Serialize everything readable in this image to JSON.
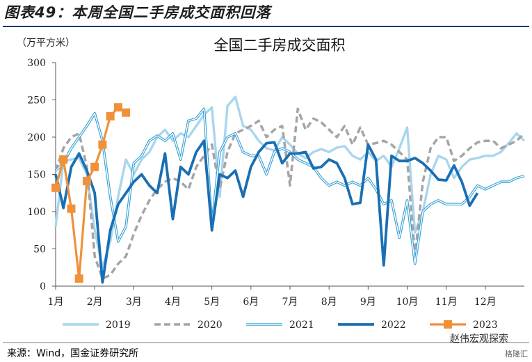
{
  "header": {
    "figure_title": "图表49：本周全国二手房成交面积回落"
  },
  "footer": {
    "source": "来源：Wind，国金证券研究所",
    "watermark": "赵伟宏观探索",
    "watermark2": "格隆汇"
  },
  "chart_data": {
    "type": "line",
    "title": "全国二手房成交面积",
    "unit_label": "（万平方米）",
    "ylim": [
      0,
      300
    ],
    "yticks": [
      0,
      50,
      100,
      150,
      200,
      250,
      300
    ],
    "xlim": [
      1,
      13
    ],
    "xticks": [
      {
        "pos": 1,
        "label": "1月"
      },
      {
        "pos": 2,
        "label": "2月"
      },
      {
        "pos": 3,
        "label": "3月"
      },
      {
        "pos": 4,
        "label": "4月"
      },
      {
        "pos": 5,
        "label": "5月"
      },
      {
        "pos": 6,
        "label": "6月"
      },
      {
        "pos": 7,
        "label": "7月"
      },
      {
        "pos": 8,
        "label": "8月"
      },
      {
        "pos": 9,
        "label": "9月"
      },
      {
        "pos": 10,
        "label": "10月"
      },
      {
        "pos": 11,
        "label": "11月"
      },
      {
        "pos": 12,
        "label": "12月"
      }
    ],
    "legend_position": "bottom",
    "series": [
      {
        "name": "2019",
        "color": "#a9d6ee",
        "style": "solid-light",
        "points": [
          [
            1.0,
            80
          ],
          [
            1.2,
            168
          ],
          [
            1.4,
            170
          ],
          [
            1.6,
            172
          ],
          [
            1.8,
            150
          ],
          [
            2.0,
            75
          ],
          [
            2.2,
            25
          ],
          [
            2.4,
            60
          ],
          [
            2.6,
            120
          ],
          [
            2.8,
            170
          ],
          [
            3.0,
            150
          ],
          [
            3.2,
            170
          ],
          [
            3.4,
            180
          ],
          [
            3.6,
            200
          ],
          [
            3.8,
            210
          ],
          [
            4.0,
            195
          ],
          [
            4.2,
            205
          ],
          [
            4.4,
            200
          ],
          [
            4.6,
            215
          ],
          [
            4.8,
            230
          ],
          [
            5.0,
            240
          ],
          [
            5.2,
            120
          ],
          [
            5.4,
            242
          ],
          [
            5.6,
            254
          ],
          [
            5.8,
            215
          ],
          [
            6.0,
            210
          ],
          [
            6.2,
            195
          ],
          [
            6.4,
            185
          ],
          [
            6.6,
            182
          ],
          [
            6.8,
            200
          ],
          [
            7.0,
            190
          ],
          [
            7.2,
            178
          ],
          [
            7.4,
            172
          ],
          [
            7.6,
            180
          ],
          [
            7.8,
            184
          ],
          [
            8.0,
            180
          ],
          [
            8.2,
            186
          ],
          [
            8.4,
            188
          ],
          [
            8.6,
            175
          ],
          [
            8.8,
            170
          ],
          [
            9.0,
            180
          ],
          [
            9.2,
            168
          ],
          [
            9.4,
            175
          ],
          [
            9.6,
            160
          ],
          [
            9.8,
            185
          ],
          [
            10.0,
            213
          ],
          [
            10.2,
            72
          ],
          [
            10.4,
            100
          ],
          [
            10.6,
            150
          ],
          [
            10.8,
            175
          ],
          [
            11.0,
            170
          ],
          [
            11.2,
            145
          ],
          [
            11.4,
            160
          ],
          [
            11.6,
            170
          ],
          [
            11.8,
            172
          ],
          [
            12.0,
            175
          ],
          [
            12.2,
            175
          ],
          [
            12.4,
            180
          ],
          [
            12.6,
            192
          ],
          [
            12.8,
            205
          ],
          [
            13.0,
            195
          ]
        ]
      },
      {
        "name": "2020",
        "color": "#a5a5a5",
        "style": "dashed",
        "points": [
          [
            1.0,
            155
          ],
          [
            1.2,
            185
          ],
          [
            1.4,
            200
          ],
          [
            1.6,
            205
          ],
          [
            1.8,
            160
          ],
          [
            2.0,
            40
          ],
          [
            2.2,
            10
          ],
          [
            2.4,
            15
          ],
          [
            2.6,
            30
          ],
          [
            2.8,
            40
          ],
          [
            3.0,
            70
          ],
          [
            3.2,
            95
          ],
          [
            3.4,
            115
          ],
          [
            3.6,
            130
          ],
          [
            3.8,
            140
          ],
          [
            4.0,
            145
          ],
          [
            4.2,
            140
          ],
          [
            4.4,
            130
          ],
          [
            4.6,
            160
          ],
          [
            4.8,
            175
          ],
          [
            5.0,
            190
          ],
          [
            5.2,
            130
          ],
          [
            5.4,
            180
          ],
          [
            5.6,
            205
          ],
          [
            5.8,
            210
          ],
          [
            6.0,
            215
          ],
          [
            6.2,
            222
          ],
          [
            6.4,
            200
          ],
          [
            6.6,
            210
          ],
          [
            6.8,
            215
          ],
          [
            7.0,
            135
          ],
          [
            7.2,
            238
          ],
          [
            7.4,
            210
          ],
          [
            7.6,
            225
          ],
          [
            7.8,
            220
          ],
          [
            8.0,
            210
          ],
          [
            8.2,
            200
          ],
          [
            8.4,
            215
          ],
          [
            8.6,
            190
          ],
          [
            8.8,
            213
          ],
          [
            9.0,
            190
          ],
          [
            9.2,
            192
          ],
          [
            9.4,
            195
          ],
          [
            9.6,
            190
          ],
          [
            9.8,
            180
          ],
          [
            10.0,
            170
          ],
          [
            10.2,
            40
          ],
          [
            10.4,
            140
          ],
          [
            10.6,
            185
          ],
          [
            10.8,
            200
          ],
          [
            11.0,
            200
          ],
          [
            11.2,
            168
          ],
          [
            11.4,
            175
          ],
          [
            11.6,
            185
          ],
          [
            11.8,
            193
          ],
          [
            12.0,
            195
          ],
          [
            12.2,
            195
          ],
          [
            12.4,
            185
          ],
          [
            12.6,
            190
          ],
          [
            12.8,
            195
          ],
          [
            13.0,
            205
          ]
        ]
      },
      {
        "name": "2021",
        "color": "#35a0d6",
        "style": "double",
        "points": [
          [
            1.0,
            155
          ],
          [
            1.2,
            165
          ],
          [
            1.4,
            185
          ],
          [
            1.6,
            200
          ],
          [
            1.8,
            215
          ],
          [
            2.0,
            232
          ],
          [
            2.2,
            195
          ],
          [
            2.4,
            120
          ],
          [
            2.6,
            60
          ],
          [
            2.8,
            80
          ],
          [
            3.0,
            165
          ],
          [
            3.2,
            175
          ],
          [
            3.4,
            195
          ],
          [
            3.6,
            202
          ],
          [
            3.8,
            195
          ],
          [
            4.0,
            205
          ],
          [
            4.2,
            170
          ],
          [
            4.4,
            222
          ],
          [
            4.6,
            225
          ],
          [
            4.8,
            238
          ],
          [
            5.0,
            82
          ],
          [
            5.2,
            180
          ],
          [
            5.4,
            200
          ],
          [
            5.6,
            205
          ],
          [
            5.8,
            180
          ],
          [
            6.0,
            175
          ],
          [
            6.2,
            175
          ],
          [
            6.4,
            150
          ],
          [
            6.6,
            180
          ],
          [
            6.8,
            185
          ],
          [
            7.0,
            180
          ],
          [
            7.2,
            170
          ],
          [
            7.4,
            165
          ],
          [
            7.6,
            160
          ],
          [
            7.8,
            145
          ],
          [
            8.0,
            135
          ],
          [
            8.2,
            140
          ],
          [
            8.4,
            135
          ],
          [
            8.6,
            140
          ],
          [
            8.8,
            135
          ],
          [
            9.0,
            145
          ],
          [
            9.2,
            130
          ],
          [
            9.4,
            110
          ],
          [
            9.6,
            115
          ],
          [
            9.8,
            65
          ],
          [
            10.0,
            115
          ],
          [
            10.2,
            30
          ],
          [
            10.4,
            100
          ],
          [
            10.6,
            110
          ],
          [
            10.8,
            115
          ],
          [
            11.0,
            110
          ],
          [
            11.2,
            110
          ],
          [
            11.4,
            110
          ],
          [
            11.6,
            120
          ],
          [
            11.8,
            135
          ],
          [
            12.0,
            130
          ],
          [
            12.2,
            135
          ],
          [
            12.4,
            140
          ],
          [
            12.6,
            140
          ],
          [
            12.8,
            145
          ],
          [
            13.0,
            148
          ]
        ]
      },
      {
        "name": "2022",
        "color": "#1a6fb3",
        "style": "bold",
        "points": [
          [
            1.0,
            150
          ],
          [
            1.2,
            105
          ],
          [
            1.4,
            160
          ],
          [
            1.6,
            178
          ],
          [
            1.8,
            155
          ],
          [
            2.0,
            125
          ],
          [
            2.2,
            5
          ],
          [
            2.4,
            75
          ],
          [
            2.6,
            110
          ],
          [
            2.8,
            125
          ],
          [
            3.0,
            140
          ],
          [
            3.2,
            150
          ],
          [
            3.4,
            135
          ],
          [
            3.6,
            125
          ],
          [
            3.8,
            178
          ],
          [
            4.0,
            90
          ],
          [
            4.2,
            160
          ],
          [
            4.4,
            150
          ],
          [
            4.6,
            180
          ],
          [
            4.8,
            195
          ],
          [
            5.0,
            75
          ],
          [
            5.2,
            150
          ],
          [
            5.4,
            145
          ],
          [
            5.6,
            155
          ],
          [
            5.8,
            120
          ],
          [
            6.0,
            160
          ],
          [
            6.2,
            180
          ],
          [
            6.4,
            192
          ],
          [
            6.6,
            193
          ],
          [
            6.8,
            165
          ],
          [
            7.0,
            178
          ],
          [
            7.2,
            178
          ],
          [
            7.4,
            180
          ],
          [
            7.6,
            158
          ],
          [
            7.8,
            160
          ],
          [
            8.0,
            170
          ],
          [
            8.2,
            165
          ],
          [
            8.4,
            145
          ],
          [
            8.6,
            110
          ],
          [
            8.8,
            112
          ],
          [
            9.0,
            190
          ],
          [
            9.2,
            170
          ],
          [
            9.4,
            28
          ],
          [
            9.6,
            175
          ],
          [
            9.8,
            168
          ],
          [
            10.0,
            168
          ],
          [
            10.2,
            172
          ],
          [
            10.4,
            165
          ],
          [
            10.6,
            155
          ],
          [
            10.8,
            143
          ],
          [
            11.0,
            142
          ],
          [
            11.2,
            162
          ],
          [
            11.4,
            140
          ],
          [
            11.6,
            108
          ],
          [
            11.8,
            125
          ]
        ]
      },
      {
        "name": "2023",
        "color": "#f0913a",
        "style": "marker",
        "points": [
          [
            1.0,
            132
          ],
          [
            1.2,
            170
          ],
          [
            1.4,
            104
          ],
          [
            1.6,
            10
          ],
          [
            1.8,
            141
          ],
          [
            2.0,
            160
          ],
          [
            2.2,
            190
          ],
          [
            2.4,
            228
          ],
          [
            2.6,
            240
          ],
          [
            2.8,
            233
          ]
        ]
      }
    ]
  }
}
